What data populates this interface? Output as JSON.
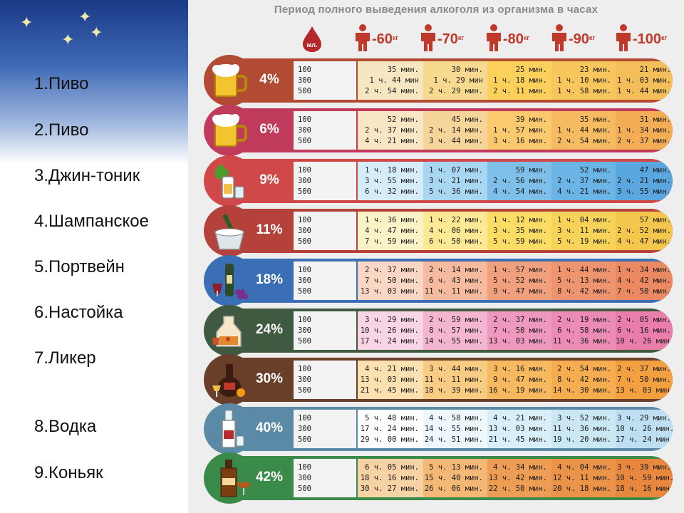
{
  "sidebar": {
    "items": [
      "1.Пиво",
      "2.Пиво",
      "3.Джин-тоник",
      "4.Шампанское",
      "5.Портвейн",
      "6.Настойка",
      "7.Ликер",
      "8.Водка",
      "9.Коньяк"
    ]
  },
  "chart": {
    "title": "Период полного выведения алкоголя из организма в часах",
    "ml_label": "мл.",
    "weights": [
      "-60",
      "-70",
      "-80",
      "-90",
      "-100"
    ],
    "weight_unit": "кг",
    "volumes": [
      "100",
      "300",
      "500"
    ],
    "rows": [
      {
        "pct": "4%",
        "drink": "beer-mug-icon",
        "color": "#b24b33",
        "times": [
          [
            "35 мин.",
            "1 ч. 44 мин",
            "2 ч. 54 мин."
          ],
          [
            "30 мин.",
            "1 ч. 29 мин",
            "2 ч. 29 мин."
          ],
          [
            "25 мин.",
            "1 ч. 18 мин.",
            "2 ч. 11 мин."
          ],
          [
            "23 мин.",
            "1 ч. 10 мин.",
            "1 ч. 58 мин."
          ],
          [
            "21 мин.",
            "1 ч. 03 мин.",
            "1 ч. 44 мин."
          ]
        ]
      },
      {
        "pct": "6%",
        "drink": "beer-mug-icon",
        "color": "#c03a5c",
        "times": [
          [
            "52 мин.",
            "2 ч. 37 мин.",
            "4 ч. 21 мин."
          ],
          [
            "45 мин.",
            "2 ч. 14 мин.",
            "3 ч. 44 мин."
          ],
          [
            "39 мин.",
            "1 ч. 57 мин.",
            "3 ч. 16 мин."
          ],
          [
            "35 мин.",
            "1 ч. 44 мин.",
            "2 ч. 54 мин."
          ],
          [
            "31 мин.",
            "1 ч. 34 мин.",
            "2 ч. 37 мин."
          ]
        ]
      },
      {
        "pct": "9%",
        "drink": "gin-tonic-icon",
        "color": "#d04848",
        "times": [
          [
            "1 ч. 18 мин.",
            "3 ч. 55 мин.",
            "6 ч. 32 мин."
          ],
          [
            "1 ч. 07 мин.",
            "3 ч. 21 мин.",
            "5 ч. 36 мин."
          ],
          [
            "59 мин.",
            "2 ч. 56 мин.",
            "4 ч. 54 мин."
          ],
          [
            "52 мин.",
            "2 ч. 37 мин.",
            "4 ч. 21 мин."
          ],
          [
            "47 мин.",
            "2 ч. 21 мин.",
            "3 ч. 55 мин."
          ]
        ]
      },
      {
        "pct": "11%",
        "drink": "champagne-bucket-icon",
        "color": "#b5423a",
        "times": [
          [
            "1 ч. 36 мин.",
            "4 ч. 47 мин.",
            "7 ч. 59 мин."
          ],
          [
            "1 ч. 22 мин.",
            "4 ч. 06 мин.",
            "6 ч. 50 мин."
          ],
          [
            "1 ч. 12 мин.",
            "3 ч. 35 мин.",
            "5 ч. 59 мин."
          ],
          [
            "1 ч. 04 мин.",
            "3 ч. 11 мин.",
            "5 ч. 19 мин."
          ],
          [
            "57 мин.",
            "2 ч. 52 мин.",
            "4 ч. 47 мин."
          ]
        ]
      },
      {
        "pct": "18%",
        "drink": "port-wine-icon",
        "color": "#3b6fb5",
        "times": [
          [
            "2 ч. 37 мин.",
            "7 ч. 50 мин.",
            "13 ч. 03 мин."
          ],
          [
            "2 ч. 14 мин.",
            "6 ч. 43 мин.",
            "11 ч. 11 мин."
          ],
          [
            "1 ч. 57 мин.",
            "5 ч. 52 мин.",
            "9 ч. 47 мин."
          ],
          [
            "1 ч. 44 мин.",
            "5 ч. 13 мин.",
            "8 ч. 42 мин."
          ],
          [
            "1 ч. 34 мин.",
            "4 ч. 42 мин.",
            "7 ч. 50 мин."
          ]
        ]
      },
      {
        "pct": "24%",
        "drink": "liqueur-decanter-icon",
        "color": "#3f5a41",
        "times": [
          [
            "3 ч. 29 мин.",
            "10 ч. 26 мин.",
            "17 ч. 24 мин."
          ],
          [
            "2 ч. 59 мин.",
            "8 ч. 57 мин.",
            "14 ч. 55 мин."
          ],
          [
            "2 ч. 37 мин.",
            "7 ч. 50 мин.",
            "13 ч. 03 мин."
          ],
          [
            "2 ч. 19 мин.",
            "6 ч. 58 мин.",
            "11 ч. 36 мин."
          ],
          [
            "2 ч. 05 мин.",
            "6 ч. 16 мин.",
            "10 ч. 26 мин."
          ]
        ]
      },
      {
        "pct": "30%",
        "drink": "liqueur-bottle-icon",
        "color": "#6a3f2a",
        "times": [
          [
            "4 ч. 21 мин.",
            "13 ч. 03 мин.",
            "21 ч. 45 мин."
          ],
          [
            "3 ч. 44 мин.",
            "11 ч. 11 мин.",
            "18 ч. 39 мин."
          ],
          [
            "3 ч. 16 мин.",
            "9 ч. 47 мин.",
            "16 ч. 19 мин."
          ],
          [
            "2 ч. 54 мин.",
            "8 ч. 42 мин.",
            "14 ч. 30 мин."
          ],
          [
            "2 ч. 37 мин.",
            "7 ч. 50 мин.",
            "13 ч. 03 мин."
          ]
        ]
      },
      {
        "pct": "40%",
        "drink": "vodka-bottle-icon",
        "color": "#5b8aa6",
        "times": [
          [
            "5 ч. 48 мин.",
            "17 ч. 24 мин.",
            "29 ч. 00 мин."
          ],
          [
            "4 ч. 58 мин.",
            "14 ч. 55 мин.",
            "24 ч. 51 мин."
          ],
          [
            "4 ч. 21 мин.",
            "13 ч. 03 мин.",
            "21 ч. 45 мин."
          ],
          [
            "3 ч. 52 мин.",
            "11 ч. 36 мин.",
            "19 ч. 20 мин."
          ],
          [
            "3 ч. 29 мин.",
            "10 ч. 26 мин.",
            "17 ч. 24 мин."
          ]
        ]
      },
      {
        "pct": "42%",
        "drink": "cognac-bottle-icon",
        "color": "#3a8a4a",
        "times": [
          [
            "6 ч. 05 мин.",
            "18 ч. 16 мин.",
            "30 ч. 27 мин."
          ],
          [
            "5 ч. 13 мин.",
            "15 ч. 40 мин.",
            "26 ч. 06 мин."
          ],
          [
            "4 ч. 34 мин.",
            "13 ч. 42 мин.",
            "22 ч. 50 мин."
          ],
          [
            "4 ч. 04 мин.",
            "12 ч. 11 мин.",
            "20 ч. 18 мин."
          ],
          [
            "3 ч. 39 мин.",
            "10 ч. 59 мин.",
            "18 ч. 16 мин."
          ]
        ]
      }
    ]
  }
}
